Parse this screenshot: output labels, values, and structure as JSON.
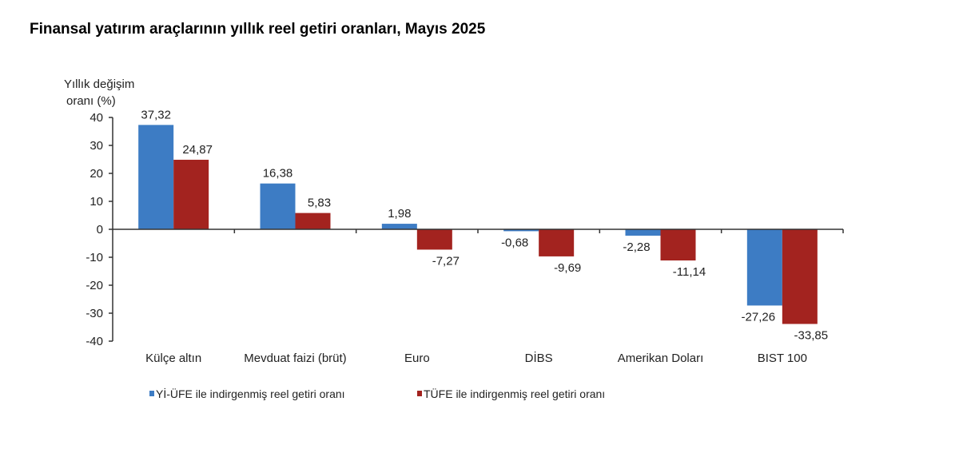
{
  "chart_data": {
    "type": "bar",
    "title": "Finansal yatırım araçlarının yıllık reel getiri oranları, Mayıs 2025",
    "ylabel_line1": "Yıllık değişim",
    "ylabel_line2": "oranı (%)",
    "xlabel": "",
    "ylim": [
      -40,
      40
    ],
    "yticks": [
      40,
      30,
      20,
      10,
      0,
      -10,
      -20,
      -30,
      -40
    ],
    "categories": [
      "Külçe altın",
      "Mevduat faizi (brüt)",
      "Euro",
      "DİBS",
      "Amerikan Doları",
      "BIST 100"
    ],
    "series": [
      {
        "name": "Yİ-ÜFE ile indirgenmiş reel getiri oranı",
        "color": "#3d7cc4",
        "values": [
          37.32,
          16.38,
          1.98,
          -0.68,
          -2.28,
          -27.26
        ],
        "labels": [
          "37,32",
          "16,38",
          "1,98",
          "-0,68",
          "-2,28",
          "-27,26"
        ]
      },
      {
        "name": "TÜFE ile indirgenmiş reel getiri oranı",
        "color": "#a3231f",
        "values": [
          24.87,
          5.83,
          -7.27,
          -9.69,
          -11.14,
          -33.85
        ],
        "labels": [
          "24,87",
          "5,83",
          "-7,27",
          "-9,69",
          "-11,14",
          "-33,85"
        ]
      }
    ],
    "legend_position": "bottom",
    "grid": false
  }
}
